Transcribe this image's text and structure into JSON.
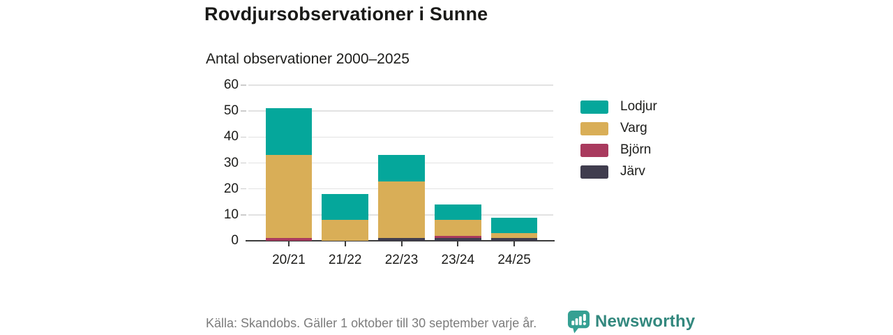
{
  "header": {
    "title": "Rovdjursobservationer i Sunne",
    "subtitle": "Antal observationer 2000–2025"
  },
  "chart_data": {
    "type": "bar",
    "stacked": true,
    "title": "Rovdjursobservationer i Sunne",
    "subtitle": "Antal observationer 2000–2025",
    "categories": [
      "20/21",
      "21/22",
      "22/23",
      "23/24",
      "24/25"
    ],
    "series": [
      {
        "name": "Lodjur",
        "color": "#05a79b",
        "values": [
          18,
          10,
          10,
          6,
          6
        ]
      },
      {
        "name": "Varg",
        "color": "#d9ae57",
        "values": [
          32,
          8,
          22,
          6,
          2
        ]
      },
      {
        "name": "Björn",
        "color": "#a93a5e",
        "values": [
          1,
          0,
          0,
          1,
          0
        ]
      },
      {
        "name": "Järv",
        "color": "#403d4e",
        "values": [
          0,
          0,
          1,
          1,
          1
        ]
      }
    ],
    "totals": [
      51,
      18,
      33,
      14,
      9
    ],
    "stack_order_bottom_to_top": [
      "Järv",
      "Björn",
      "Varg",
      "Lodjur"
    ],
    "xlabel": "",
    "ylabel": "",
    "ylim": [
      0,
      60
    ],
    "yticks": [
      0,
      10,
      20,
      30,
      40,
      50,
      60
    ],
    "grid": true,
    "legend_position": "right"
  },
  "footer": {
    "source": "Källa: Skandobs. Gäller 1 oktober till 30 september varje år.",
    "brand": "Newsworthy"
  },
  "colors": {
    "lodjur": "#05a79b",
    "varg": "#d9ae57",
    "bjorn": "#a93a5e",
    "jarv": "#403d4e",
    "axis": "#3b3b3b",
    "gridline": "#e2e2e2",
    "text": "#1d1d1b",
    "muted_text": "#7c7c7c",
    "brand_text": "#33887e",
    "brand_icon": "#35a093"
  }
}
